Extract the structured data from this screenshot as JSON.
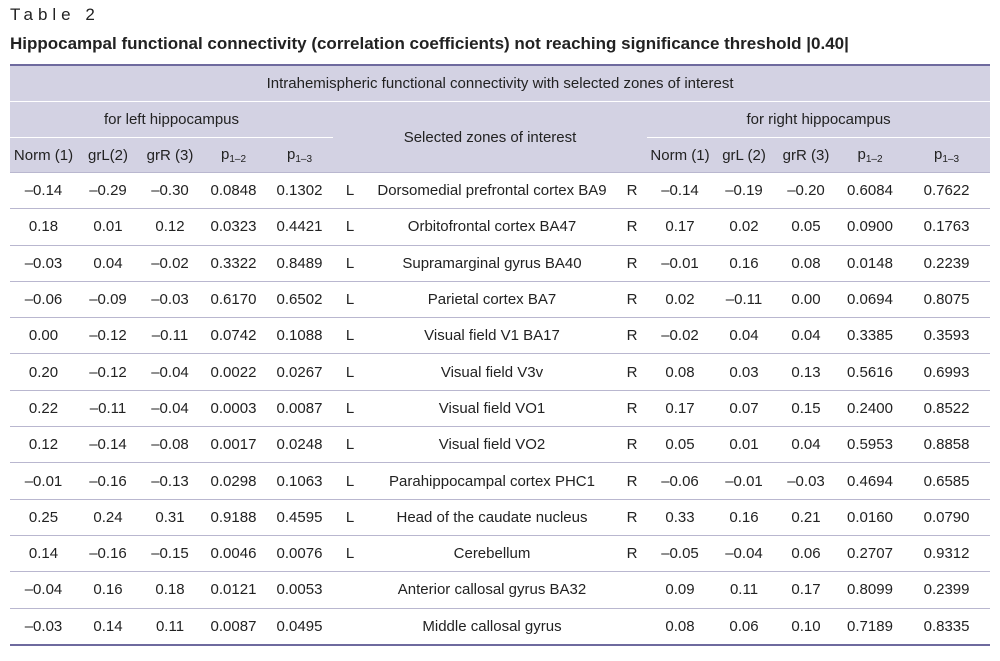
{
  "table_label": "Table 2",
  "caption": "Hippocampal functional connectivity (correlation coefficients) not reaching significance threshold |0.40|",
  "header": {
    "top": "Intrahemispheric functional connectivity with selected zones of interest",
    "left_group": "for left hippocampus",
    "middle": "Selected zones of interest",
    "right_group": "for right hippocampus",
    "left_cols": [
      "Norm (1)",
      "grL(2)",
      "grR (3)"
    ],
    "right_cols": [
      "Norm (1)",
      "grL (2)",
      "grR (3)"
    ],
    "p_base": "p",
    "p12_sub": "1–2",
    "p13_sub": "1–3"
  },
  "rows": [
    {
      "l": [
        "–0.14",
        "–0.29",
        "–0.30",
        "0.0848",
        "0.1302"
      ],
      "side_l": "L",
      "zone": "Dorsomedial prefrontal cortex BA9",
      "side_r": "R",
      "r": [
        "–0.14",
        "–0.19",
        "–0.20",
        "0.6084",
        "0.7622"
      ]
    },
    {
      "l": [
        "0.18",
        "0.01",
        "0.12",
        "0.0323",
        "0.4421"
      ],
      "side_l": "L",
      "zone": "Orbitofrontal cortex BA47",
      "side_r": "R",
      "r": [
        "0.17",
        "0.02",
        "0.05",
        "0.0900",
        "0.1763"
      ]
    },
    {
      "l": [
        "–0.03",
        "0.04",
        "–0.02",
        "0.3322",
        "0.8489"
      ],
      "side_l": "L",
      "zone": "Supramarginal gyrus BA40",
      "side_r": "R",
      "r": [
        "–0.01",
        "0.16",
        "0.08",
        "0.0148",
        "0.2239"
      ]
    },
    {
      "l": [
        "–0.06",
        "–0.09",
        "–0.03",
        "0.6170",
        "0.6502"
      ],
      "side_l": "L",
      "zone": "Parietal cortex BA7",
      "side_r": "R",
      "r": [
        "0.02",
        "–0.11",
        "0.00",
        "0.0694",
        "0.8075"
      ]
    },
    {
      "l": [
        "0.00",
        "–0.12",
        "–0.11",
        "0.0742",
        "0.1088"
      ],
      "side_l": "L",
      "zone": "Visual field V1 BA17",
      "side_r": "R",
      "r": [
        "–0.02",
        "0.04",
        "0.04",
        "0.3385",
        "0.3593"
      ]
    },
    {
      "l": [
        "0.20",
        "–0.12",
        "–0.04",
        "0.0022",
        "0.0267"
      ],
      "side_l": "L",
      "zone": "Visual field V3v",
      "side_r": "R",
      "r": [
        "0.08",
        "0.03",
        "0.13",
        "0.5616",
        "0.6993"
      ]
    },
    {
      "l": [
        "0.22",
        "–0.11",
        "–0.04",
        "0.0003",
        "0.0087"
      ],
      "side_l": "L",
      "zone": "Visual field VO1",
      "side_r": "R",
      "r": [
        "0.17",
        "0.07",
        "0.15",
        "0.2400",
        "0.8522"
      ]
    },
    {
      "l": [
        "0.12",
        "–0.14",
        "–0.08",
        "0.0017",
        "0.0248"
      ],
      "side_l": "L",
      "zone": "Visual field VO2",
      "side_r": "R",
      "r": [
        "0.05",
        "0.01",
        "0.04",
        "0.5953",
        "0.8858"
      ]
    },
    {
      "l": [
        "–0.01",
        "–0.16",
        "–0.13",
        "0.0298",
        "0.1063"
      ],
      "side_l": "L",
      "zone": "Parahippocampal cortex PHC1",
      "side_r": "R",
      "r": [
        "–0.06",
        "–0.01",
        "–0.03",
        "0.4694",
        "0.6585"
      ]
    },
    {
      "l": [
        "0.25",
        "0.24",
        "0.31",
        "0.9188",
        "0.4595"
      ],
      "side_l": "L",
      "zone": "Head of the caudate nucleus",
      "side_r": "R",
      "r": [
        "0.33",
        "0.16",
        "0.21",
        "0.0160",
        "0.0790"
      ]
    },
    {
      "l": [
        "0.14",
        "–0.16",
        "–0.15",
        "0.0046",
        "0.0076"
      ],
      "side_l": "L",
      "zone": "Cerebellum",
      "side_r": "R",
      "r": [
        "–0.05",
        "–0.04",
        "0.06",
        "0.2707",
        "0.9312"
      ]
    },
    {
      "l": [
        "–0.04",
        "0.16",
        "0.18",
        "0.0121",
        "0.0053"
      ],
      "side_l": "",
      "zone": "Anterior callosal gyrus BA32",
      "side_r": "",
      "r": [
        "0.09",
        "0.11",
        "0.17",
        "0.8099",
        "0.2399"
      ]
    },
    {
      "l": [
        "–0.03",
        "0.14",
        "0.11",
        "0.0087",
        "0.0495"
      ],
      "side_l": "",
      "zone": "Middle callosal gyrus",
      "side_r": "",
      "r": [
        "0.08",
        "0.06",
        "0.10",
        "0.7189",
        "0.8335"
      ]
    }
  ],
  "colors": {
    "header_bg": "#d3d2e3",
    "rule": "#6e6a9e"
  }
}
